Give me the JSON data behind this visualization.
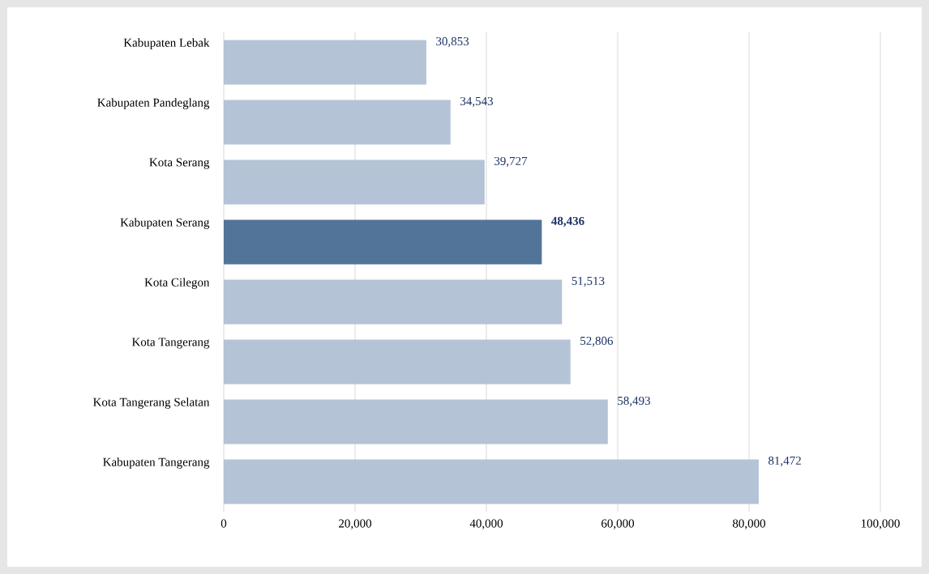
{
  "chart_data": {
    "type": "bar",
    "orientation": "horizontal",
    "categories": [
      "Kabupaten Lebak",
      "Kabupaten Pandeglang",
      "Kota Serang",
      "Kabupaten Serang",
      "Kota Cilegon",
      "Kota Tangerang",
      "Kota Tangerang Selatan",
      "Kabupaten Tangerang"
    ],
    "values": [
      30853,
      34543,
      39727,
      48436,
      51513,
      52806,
      58493,
      81472
    ],
    "colors": [
      "#b4c3d6",
      "#b4c3d6",
      "#b4c3d6",
      "#537499",
      "#b4c3d6",
      "#b4c3d6",
      "#b4c3d6",
      "#b4c3d6"
    ],
    "value_labels": [
      "30,853",
      "34,543",
      "39,727",
      "**48,436**",
      "51,513",
      "52,806",
      "58,493",
      "81,472"
    ],
    "xlim": [
      0,
      100000
    ],
    "xticks": [
      {
        "value": 0,
        "label": "0"
      },
      {
        "value": 20000,
        "label": "20,000"
      },
      {
        "value": 40000,
        "label": "40,000"
      },
      {
        "value": 60000,
        "label": "60,000"
      },
      {
        "value": 80000,
        "label": "80,000"
      },
      {
        "value": 100000,
        "label": "100,000"
      }
    ],
    "grid": "x"
  }
}
